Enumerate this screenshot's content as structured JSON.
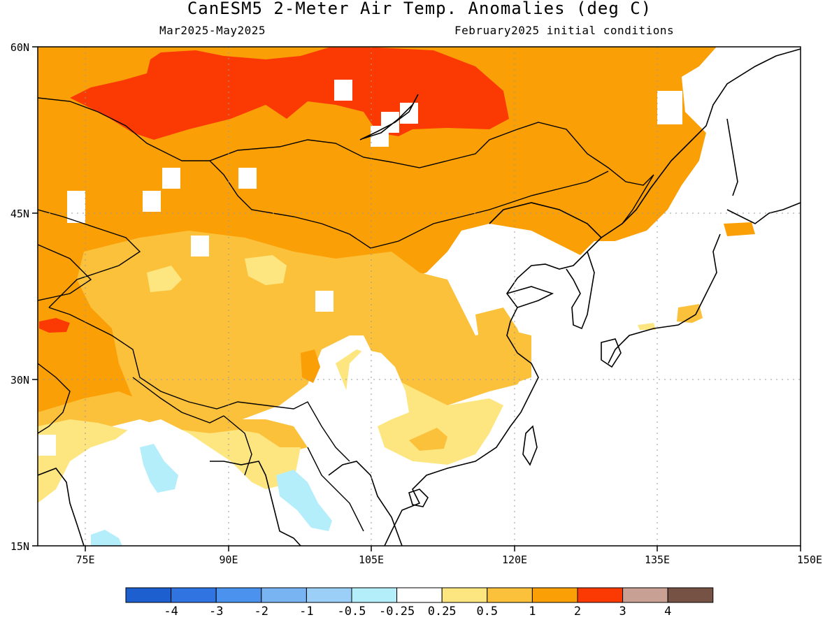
{
  "header": {
    "title": "CanESM5 2-Meter Air Temp. Anomalies (deg C)",
    "period": "Mar2025-May2025",
    "initial_conditions": "February2025 initial conditions"
  },
  "map": {
    "region": "East Asia",
    "lon_range": [
      70,
      150
    ],
    "lat_range": [
      15,
      60
    ],
    "lat_ticks": [
      "60N",
      "45N",
      "30N",
      "15N"
    ],
    "lon_ticks": [
      "75E",
      "90E",
      "105E",
      "120E",
      "135E",
      "150E"
    ],
    "gridlines": "dotted"
  },
  "colorbar": {
    "labels": [
      "-4",
      "-3",
      "-2",
      "-1",
      "-0.5",
      "-0.25",
      "0.25",
      "0.5",
      "1",
      "2",
      "3",
      "4"
    ],
    "colors": [
      "#1d5fcf",
      "#2f74e0",
      "#4a92ee",
      "#79b4f2",
      "#9ccff8",
      "#b5eefb",
      "#ffffff",
      "#fde680",
      "#fcc13b",
      "#fb9f07",
      "#fb3a03",
      "#c8a194",
      "#765244"
    ]
  }
}
